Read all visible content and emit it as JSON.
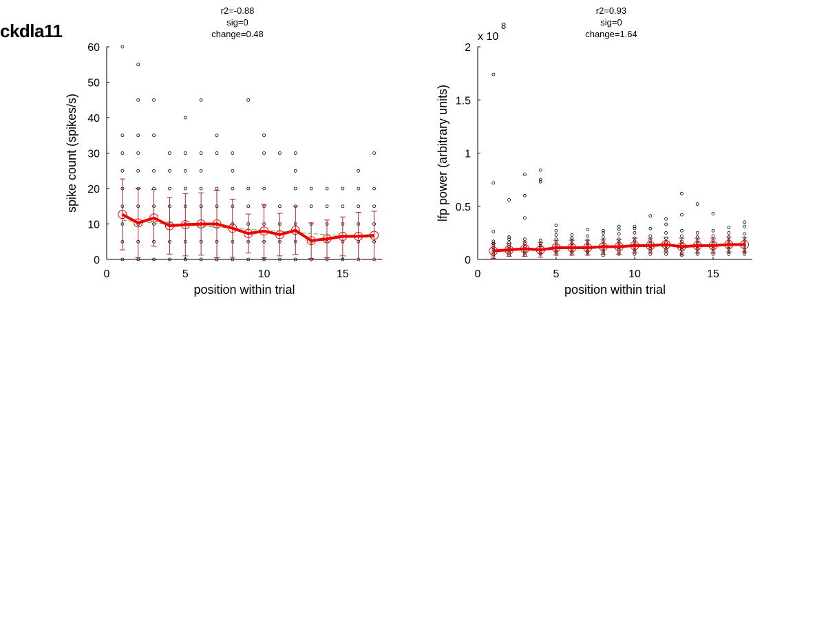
{
  "page": {
    "title": "ckdla11"
  },
  "chart_data": [
    {
      "type": "scatter",
      "stats": [
        "r2=-0.88",
        "sig=0",
        "change=0.48"
      ],
      "xlabel": "position within trial",
      "ylabel": "spike count (spikes/s)",
      "exponent_label": "",
      "xlim": [
        0,
        17.5
      ],
      "ylim": [
        0,
        60
      ],
      "xticks": [
        0,
        5,
        10,
        15
      ],
      "yticks": [
        0,
        10,
        20,
        30,
        40,
        50,
        60
      ],
      "ytick_labels": [
        "0",
        "10",
        "20",
        "30",
        "40",
        "50",
        "60"
      ],
      "points": [
        [
          1,
          0
        ],
        [
          1,
          5
        ],
        [
          1,
          10
        ],
        [
          1,
          15
        ],
        [
          1,
          20
        ],
        [
          1,
          25
        ],
        [
          1,
          30
        ],
        [
          1,
          35
        ],
        [
          1,
          60
        ],
        [
          2,
          0
        ],
        [
          2,
          5
        ],
        [
          2,
          10
        ],
        [
          2,
          15
        ],
        [
          2,
          20
        ],
        [
          2,
          25
        ],
        [
          2,
          30
        ],
        [
          2,
          35
        ],
        [
          2,
          45
        ],
        [
          2,
          55
        ],
        [
          3,
          0
        ],
        [
          3,
          5
        ],
        [
          3,
          10
        ],
        [
          3,
          15
        ],
        [
          3,
          20
        ],
        [
          3,
          25
        ],
        [
          3,
          35
        ],
        [
          3,
          45
        ],
        [
          4,
          0
        ],
        [
          4,
          5
        ],
        [
          4,
          10
        ],
        [
          4,
          15
        ],
        [
          4,
          20
        ],
        [
          4,
          25
        ],
        [
          4,
          30
        ],
        [
          5,
          0
        ],
        [
          5,
          5
        ],
        [
          5,
          10
        ],
        [
          5,
          15
        ],
        [
          5,
          20
        ],
        [
          5,
          25
        ],
        [
          5,
          30
        ],
        [
          5,
          40
        ],
        [
          6,
          0
        ],
        [
          6,
          5
        ],
        [
          6,
          10
        ],
        [
          6,
          15
        ],
        [
          6,
          20
        ],
        [
          6,
          25
        ],
        [
          6,
          30
        ],
        [
          6,
          45
        ],
        [
          7,
          0
        ],
        [
          7,
          5
        ],
        [
          7,
          10
        ],
        [
          7,
          15
        ],
        [
          7,
          20
        ],
        [
          7,
          30
        ],
        [
          7,
          35
        ],
        [
          8,
          0
        ],
        [
          8,
          5
        ],
        [
          8,
          10
        ],
        [
          8,
          15
        ],
        [
          8,
          20
        ],
        [
          8,
          25
        ],
        [
          8,
          30
        ],
        [
          9,
          0
        ],
        [
          9,
          5
        ],
        [
          9,
          10
        ],
        [
          9,
          15
        ],
        [
          9,
          20
        ],
        [
          9,
          45
        ],
        [
          10,
          0
        ],
        [
          10,
          5
        ],
        [
          10,
          10
        ],
        [
          10,
          15
        ],
        [
          10,
          20
        ],
        [
          10,
          30
        ],
        [
          10,
          35
        ],
        [
          11,
          0
        ],
        [
          11,
          5
        ],
        [
          11,
          10
        ],
        [
          11,
          15
        ],
        [
          11,
          30
        ],
        [
          12,
          0
        ],
        [
          12,
          5
        ],
        [
          12,
          10
        ],
        [
          12,
          15
        ],
        [
          12,
          20
        ],
        [
          12,
          25
        ],
        [
          12,
          30
        ],
        [
          13,
          0
        ],
        [
          13,
          5
        ],
        [
          13,
          10
        ],
        [
          13,
          15
        ],
        [
          13,
          20
        ],
        [
          14,
          0
        ],
        [
          14,
          5
        ],
        [
          14,
          10
        ],
        [
          14,
          15
        ],
        [
          14,
          20
        ],
        [
          15,
          0
        ],
        [
          15,
          5
        ],
        [
          15,
          10
        ],
        [
          15,
          15
        ],
        [
          15,
          20
        ],
        [
          16,
          0
        ],
        [
          16,
          5
        ],
        [
          16,
          10
        ],
        [
          16,
          15
        ],
        [
          16,
          20
        ],
        [
          16,
          25
        ],
        [
          17,
          0
        ],
        [
          17,
          5
        ],
        [
          17,
          10
        ],
        [
          17,
          15
        ],
        [
          17,
          20
        ],
        [
          17,
          30
        ]
      ],
      "means": [
        12.7,
        10.3,
        11.7,
        9.5,
        9.8,
        10.0,
        10.0,
        8.8,
        7.3,
        8.0,
        7.0,
        8.2,
        5.3,
        5.8,
        6.5,
        6.5,
        6.8
      ],
      "errors": [
        10.0,
        9.8,
        8.0,
        8.0,
        8.8,
        8.8,
        9.5,
        8.2,
        5.5,
        7.5,
        6.0,
        6.8,
        5.0,
        5.3,
        5.5,
        6.8,
        6.8
      ],
      "fit": [
        11.0,
        10.7,
        10.3,
        10.0,
        9.7,
        9.4,
        9.1,
        8.8,
        8.5,
        8.2,
        7.9,
        7.6,
        7.3,
        7.0,
        6.7,
        6.4,
        6.1
      ],
      "colors": {
        "mean": "#ee0000",
        "error": "#b22222",
        "fit": "#5cb85c",
        "points": "#000000"
      }
    },
    {
      "type": "scatter",
      "stats": [
        "r2=0.93",
        "sig=0",
        "change=1.64"
      ],
      "xlabel": "position within trial",
      "ylabel": "lfp power (arbitrary units)",
      "exponent_label": "x 10",
      "exponent_power": "8",
      "xlim": [
        0,
        17.5
      ],
      "ylim": [
        0,
        2
      ],
      "xticks": [
        0,
        5,
        10,
        15
      ],
      "yticks": [
        0,
        0.5,
        1,
        1.5,
        2
      ],
      "ytick_labels": [
        "0",
        "0.5",
        "1",
        "1.5",
        "2"
      ],
      "points": [
        [
          1,
          0.03
        ],
        [
          1,
          0.05
        ],
        [
          1,
          0.07
        ],
        [
          1,
          0.09
        ],
        [
          1,
          0.11
        ],
        [
          1,
          0.13
        ],
        [
          1,
          0.15
        ],
        [
          1,
          0.17
        ],
        [
          1,
          0.26
        ],
        [
          1,
          0.72
        ],
        [
          1,
          1.74
        ],
        [
          2,
          0.04
        ],
        [
          2,
          0.06
        ],
        [
          2,
          0.08
        ],
        [
          2,
          0.1
        ],
        [
          2,
          0.12
        ],
        [
          2,
          0.14
        ],
        [
          2,
          0.16
        ],
        [
          2,
          0.19
        ],
        [
          2,
          0.21
        ],
        [
          2,
          0.56
        ],
        [
          3,
          0.04
        ],
        [
          3,
          0.06
        ],
        [
          3,
          0.08
        ],
        [
          3,
          0.1
        ],
        [
          3,
          0.12
        ],
        [
          3,
          0.15
        ],
        [
          3,
          0.19
        ],
        [
          3,
          0.39
        ],
        [
          3,
          0.6
        ],
        [
          3,
          0.8
        ],
        [
          4,
          0.05
        ],
        [
          4,
          0.07
        ],
        [
          4,
          0.09
        ],
        [
          4,
          0.11
        ],
        [
          4,
          0.13
        ],
        [
          4,
          0.15
        ],
        [
          4,
          0.18
        ],
        [
          4,
          0.73
        ],
        [
          4,
          0.75
        ],
        [
          4,
          0.84
        ],
        [
          5,
          0.05
        ],
        [
          5,
          0.07
        ],
        [
          5,
          0.09
        ],
        [
          5,
          0.11
        ],
        [
          5,
          0.13
        ],
        [
          5,
          0.16
        ],
        [
          5,
          0.19
        ],
        [
          5,
          0.23
        ],
        [
          5,
          0.27
        ],
        [
          5,
          0.32
        ],
        [
          6,
          0.05
        ],
        [
          6,
          0.07
        ],
        [
          6,
          0.09
        ],
        [
          6,
          0.11
        ],
        [
          6,
          0.13
        ],
        [
          6,
          0.15
        ],
        [
          6,
          0.18
        ],
        [
          6,
          0.2
        ],
        [
          6,
          0.23
        ],
        [
          7,
          0.05
        ],
        [
          7,
          0.07
        ],
        [
          7,
          0.09
        ],
        [
          7,
          0.11
        ],
        [
          7,
          0.13
        ],
        [
          7,
          0.15
        ],
        [
          7,
          0.18
        ],
        [
          7,
          0.22
        ],
        [
          7,
          0.28
        ],
        [
          8,
          0.04
        ],
        [
          8,
          0.06
        ],
        [
          8,
          0.08
        ],
        [
          8,
          0.1
        ],
        [
          8,
          0.12
        ],
        [
          8,
          0.14
        ],
        [
          8,
          0.17
        ],
        [
          8,
          0.21
        ],
        [
          8,
          0.25
        ],
        [
          8,
          0.27
        ],
        [
          9,
          0.05
        ],
        [
          9,
          0.07
        ],
        [
          9,
          0.09
        ],
        [
          9,
          0.11
        ],
        [
          9,
          0.13
        ],
        [
          9,
          0.16
        ],
        [
          9,
          0.19
        ],
        [
          9,
          0.24
        ],
        [
          9,
          0.28
        ],
        [
          9,
          0.31
        ],
        [
          10,
          0.05
        ],
        [
          10,
          0.07
        ],
        [
          10,
          0.09
        ],
        [
          10,
          0.12
        ],
        [
          10,
          0.14
        ],
        [
          10,
          0.17
        ],
        [
          10,
          0.2
        ],
        [
          10,
          0.25
        ],
        [
          10,
          0.29
        ],
        [
          10,
          0.31
        ],
        [
          11,
          0.05
        ],
        [
          11,
          0.08
        ],
        [
          11,
          0.1
        ],
        [
          11,
          0.12
        ],
        [
          11,
          0.15
        ],
        [
          11,
          0.18
        ],
        [
          11,
          0.22
        ],
        [
          11,
          0.29
        ],
        [
          11,
          0.41
        ],
        [
          12,
          0.05
        ],
        [
          12,
          0.08
        ],
        [
          12,
          0.1
        ],
        [
          12,
          0.13
        ],
        [
          12,
          0.16
        ],
        [
          12,
          0.2
        ],
        [
          12,
          0.25
        ],
        [
          12,
          0.33
        ],
        [
          12,
          0.38
        ],
        [
          13,
          0.04
        ],
        [
          13,
          0.06
        ],
        [
          13,
          0.09
        ],
        [
          13,
          0.11
        ],
        [
          13,
          0.14
        ],
        [
          13,
          0.17
        ],
        [
          13,
          0.22
        ],
        [
          13,
          0.27
        ],
        [
          13,
          0.42
        ],
        [
          13,
          0.62
        ],
        [
          14,
          0.05
        ],
        [
          14,
          0.07
        ],
        [
          14,
          0.1
        ],
        [
          14,
          0.12
        ],
        [
          14,
          0.15
        ],
        [
          14,
          0.18
        ],
        [
          14,
          0.21
        ],
        [
          14,
          0.25
        ],
        [
          14,
          0.52
        ],
        [
          15,
          0.05
        ],
        [
          15,
          0.07
        ],
        [
          15,
          0.1
        ],
        [
          15,
          0.12
        ],
        [
          15,
          0.15
        ],
        [
          15,
          0.18
        ],
        [
          15,
          0.22
        ],
        [
          15,
          0.27
        ],
        [
          15,
          0.43
        ],
        [
          16,
          0.05
        ],
        [
          16,
          0.07
        ],
        [
          16,
          0.1
        ],
        [
          16,
          0.12
        ],
        [
          16,
          0.15
        ],
        [
          16,
          0.18
        ],
        [
          16,
          0.21
        ],
        [
          16,
          0.25
        ],
        [
          16,
          0.3
        ],
        [
          17,
          0.05
        ],
        [
          17,
          0.07
        ],
        [
          17,
          0.09
        ],
        [
          17,
          0.12
        ],
        [
          17,
          0.14
        ],
        [
          17,
          0.17
        ],
        [
          17,
          0.2
        ],
        [
          17,
          0.24
        ],
        [
          17,
          0.31
        ],
        [
          17,
          0.35
        ]
      ],
      "means": [
        0.08,
        0.09,
        0.1,
        0.09,
        0.11,
        0.11,
        0.11,
        0.12,
        0.12,
        0.13,
        0.13,
        0.14,
        0.12,
        0.13,
        0.13,
        0.14,
        0.14
      ],
      "errors": [
        0.07,
        0.06,
        0.07,
        0.07,
        0.07,
        0.07,
        0.07,
        0.07,
        0.07,
        0.07,
        0.07,
        0.07,
        0.08,
        0.07,
        0.07,
        0.07,
        0.07
      ],
      "fit": [
        0.085,
        0.089,
        0.093,
        0.097,
        0.101,
        0.105,
        0.108,
        0.112,
        0.115,
        0.119,
        0.122,
        0.125,
        0.128,
        0.131,
        0.134,
        0.137,
        0.14
      ],
      "colors": {
        "mean": "#ee0000",
        "error": "#b22222",
        "fit": "#5cb85c",
        "points": "#000000"
      }
    }
  ]
}
